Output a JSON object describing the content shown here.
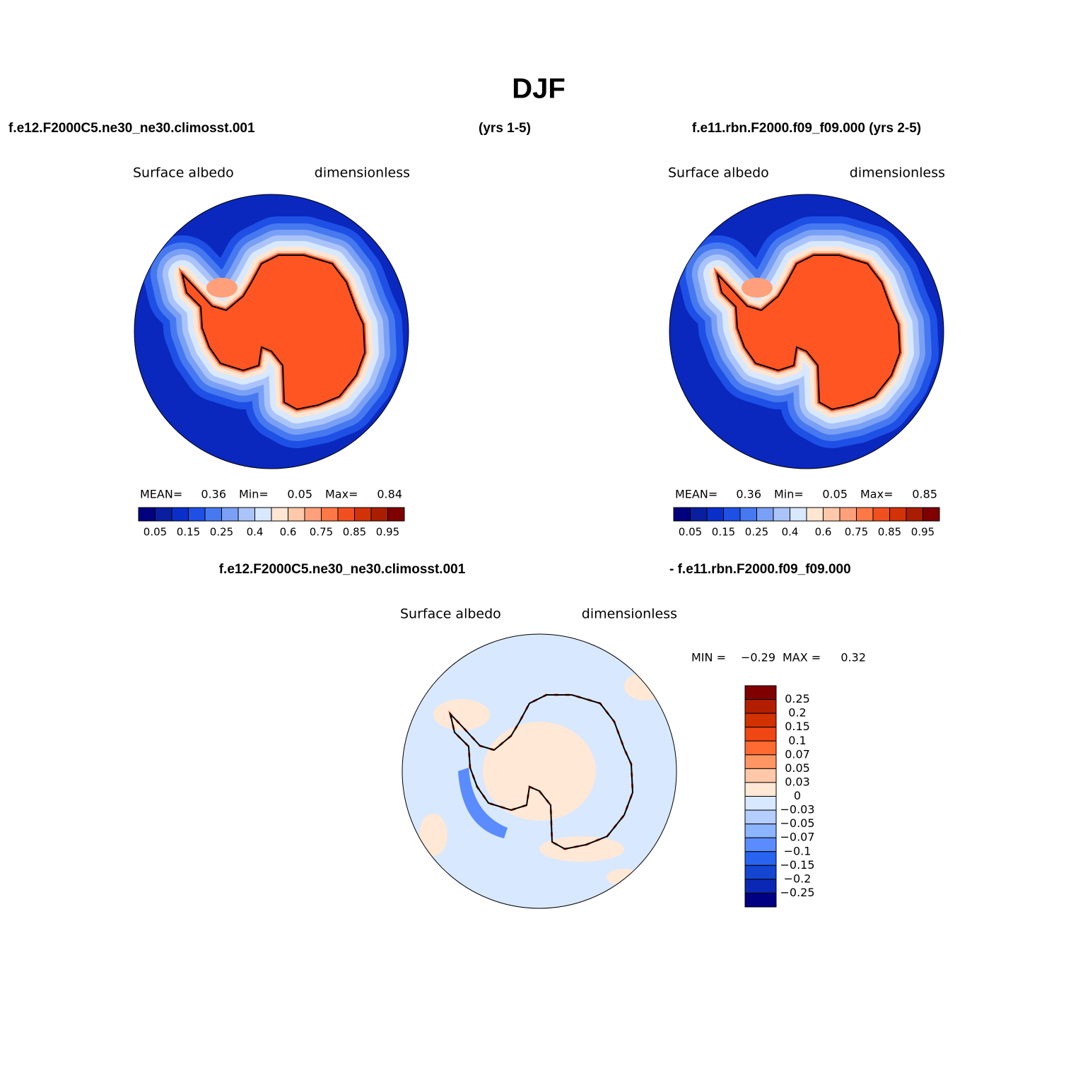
{
  "title": "DJF",
  "header": {
    "left": "f.e12.F2000C5.ne30_ne30.climosst.001",
    "middle": "(yrs 1-5)",
    "right": "f.e11.rbn.F2000.f09_f09.000 (yrs 2-5)"
  },
  "panels": [
    {
      "variable": "Surface albedo",
      "units": "dimensionless",
      "stats": [
        "MEAN=",
        "0.36",
        "Min=",
        "0.05",
        "Max=",
        "0.84"
      ]
    },
    {
      "variable": "Surface albedo",
      "units": "dimensionless",
      "stats": [
        "MEAN=",
        "0.36",
        "Min=",
        "0.05",
        "Max=",
        "0.85"
      ]
    }
  ],
  "colorbar": {
    "colors": [
      "#00007f",
      "#0a1fa0",
      "#0a2fc8",
      "#1e50e6",
      "#4678f0",
      "#7aa0f5",
      "#aac4fa",
      "#d8e8ff",
      "#ffe6d2",
      "#ffc8aa",
      "#ffa07a",
      "#ff7846",
      "#f05020",
      "#d23208",
      "#aa1e00",
      "#800000"
    ],
    "labels": [
      "0.05",
      "0.15",
      "0.25",
      "0.4",
      "0.6",
      "0.75",
      "0.85",
      "0.95"
    ]
  },
  "diff": {
    "left_title": "f.e12.F2000C5.ne30_ne30.climosst.001",
    "right_title": "- f.e11.rbn.F2000.f09_f09.000",
    "variable": "Surface albedo",
    "units": "dimensionless",
    "stats": [
      "MIN =",
      "−0.29",
      "MAX =",
      "0.32"
    ],
    "colorbar": {
      "colors": [
        "#800000",
        "#b41e00",
        "#d23200",
        "#f04614",
        "#ff6a32",
        "#ff9664",
        "#ffc8a8",
        "#ffe8d6",
        "#d8e8ff",
        "#b4ceff",
        "#8cb4ff",
        "#5a8cff",
        "#2864f0",
        "#1446d2",
        "#0a28b4",
        "#000082"
      ],
      "labels": [
        "0.25",
        "0.2",
        "0.15",
        "0.1",
        "0.07",
        "0.05",
        "0.03",
        "0",
        "−0.03",
        "−0.05",
        "−0.07",
        "−0.1",
        "−0.15",
        "−0.2",
        "−0.25"
      ]
    }
  }
}
